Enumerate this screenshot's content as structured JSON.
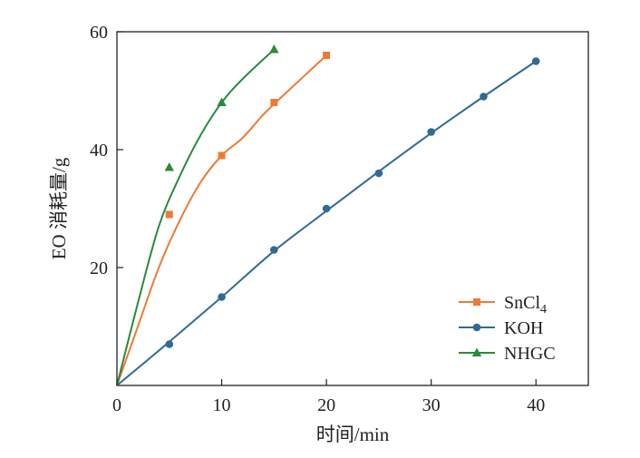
{
  "chart_data": {
    "type": "scatter",
    "title": "",
    "xlabel": "时间/min",
    "ylabel": "EO 消耗量/g",
    "xlim": [
      0,
      45
    ],
    "ylim": [
      0,
      60
    ],
    "x_ticks": [
      "0",
      "10",
      "20",
      "30",
      "40"
    ],
    "x_tick_values": [
      0,
      10,
      20,
      30,
      40
    ],
    "y_ticks": [
      "20",
      "40",
      "60"
    ],
    "y_tick_values": [
      20,
      40,
      60
    ],
    "grid": false,
    "legend_position": "bottom-right",
    "series": [
      {
        "name": "SnCl",
        "name_sub": "4",
        "color": "#ef7a36",
        "marker": "square",
        "x": [
          5,
          10,
          15,
          20
        ],
        "y": [
          29,
          39,
          48,
          56
        ],
        "fit_x": [
          0,
          2,
          4,
          6,
          8,
          10,
          12,
          14,
          16,
          18,
          20
        ],
        "fit_y": [
          0,
          10,
          20,
          28,
          34.5,
          39,
          42,
          46,
          49.4,
          52.7,
          56
        ]
      },
      {
        "name": "KOH",
        "color": "#2f6b96",
        "marker": "circle",
        "x": [
          5,
          10,
          15,
          20,
          25,
          30,
          35,
          40
        ],
        "y": [
          7,
          15,
          23,
          30,
          36,
          43,
          49,
          55
        ],
        "fit_x": [
          0,
          5,
          10,
          15,
          20,
          25,
          30,
          35,
          40
        ],
        "fit_y": [
          0,
          7.4,
          15,
          22.8,
          29.6,
          36.3,
          42.8,
          49,
          55
        ]
      },
      {
        "name": "NHGC",
        "color": "#2b8a3e",
        "marker": "triangle",
        "x": [
          5,
          10,
          15
        ],
        "y": [
          37,
          48,
          57
        ],
        "fit_x": [
          0,
          2,
          4,
          6,
          8,
          10,
          12,
          15
        ],
        "fit_y": [
          0,
          14,
          27,
          35.5,
          42.5,
          48,
          52,
          57
        ]
      }
    ]
  }
}
